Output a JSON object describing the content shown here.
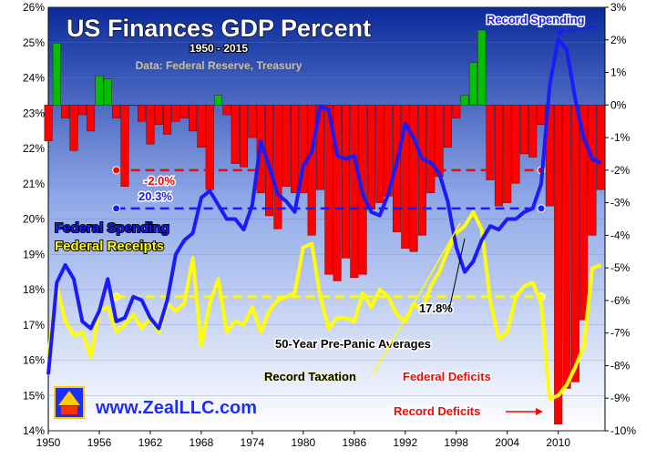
{
  "chart_data": {
    "type": "bar+line",
    "title": "US Finances GDP Percent",
    "subtitle": "1950 - 2015",
    "source": "Data: Federal Reserve, Treasury",
    "left_axis": {
      "min": 14,
      "max": 26,
      "ticks": [
        "14%",
        "15%",
        "16%",
        "17%",
        "18%",
        "19%",
        "20%",
        "21%",
        "22%",
        "23%",
        "24%",
        "25%",
        "26%"
      ]
    },
    "right_axis": {
      "min": -10,
      "max": 3,
      "ticks": [
        "-10%",
        "-9%",
        "-8%",
        "-7%",
        "-6%",
        "-5%",
        "-4%",
        "-3%",
        "-2%",
        "-1%",
        "0%",
        "1%",
        "2%",
        "3%"
      ]
    },
    "x_ticks": [
      "1950",
      "1956",
      "1962",
      "1968",
      "1974",
      "1980",
      "1986",
      "1992",
      "1998",
      "2004",
      "2010"
    ],
    "years": [
      1950,
      1951,
      1952,
      1953,
      1954,
      1955,
      1956,
      1957,
      1958,
      1959,
      1960,
      1961,
      1962,
      1963,
      1964,
      1965,
      1966,
      1967,
      1968,
      1969,
      1970,
      1971,
      1972,
      1973,
      1974,
      1975,
      1976,
      1977,
      1978,
      1979,
      1980,
      1981,
      1982,
      1983,
      1984,
      1985,
      1986,
      1987,
      1988,
      1989,
      1990,
      1991,
      1992,
      1993,
      1994,
      1995,
      1996,
      1997,
      1998,
      1999,
      2000,
      2001,
      2002,
      2003,
      2004,
      2005,
      2006,
      2007,
      2008,
      2009,
      2010,
      2011,
      2012,
      2013,
      2014,
      2015
    ],
    "series": [
      {
        "name": "Federal Spending",
        "axis": "left",
        "color": "#1a1aff",
        "values": [
          15.6,
          18.2,
          18.7,
          18.3,
          17.1,
          16.9,
          17.4,
          18.3,
          17.1,
          17.2,
          17.8,
          17.7,
          17.2,
          16.9,
          17.7,
          19.0,
          19.4,
          19.6,
          20.6,
          20.8,
          20.4,
          20.0,
          20.0,
          19.7,
          20.4,
          22.2,
          21.5,
          20.7,
          20.5,
          20.2,
          21.5,
          21.9,
          23.2,
          23.1,
          21.8,
          21.7,
          21.8,
          20.7,
          20.2,
          20.1,
          20.7,
          21.6,
          22.7,
          22.3,
          21.7,
          21.6,
          21.3,
          20.5,
          19.2,
          18.5,
          18.8,
          19.4,
          19.8,
          19.7,
          20.0,
          20.0,
          20.2,
          20.3,
          21.0,
          23.8,
          25.1,
          24.8,
          23.4,
          22.3,
          21.7,
          21.6
        ]
      },
      {
        "name": "Federal Receipts",
        "axis": "left",
        "color": "#ffff00",
        "values": [
          16.1,
          18.1,
          17.1,
          16.7,
          16.8,
          16.1,
          17.4,
          17.5,
          16.8,
          17.0,
          17.3,
          16.9,
          17.2,
          16.8,
          17.6,
          17.4,
          17.6,
          18.9,
          16.4,
          17.6,
          18.3,
          16.8,
          17.1,
          17.0,
          17.5,
          16.8,
          17.4,
          17.7,
          17.8,
          17.9,
          19.2,
          19.3,
          17.8,
          16.9,
          17.2,
          17.2,
          17.1,
          17.9,
          17.5,
          18.0,
          17.8,
          17.3,
          17.1,
          17.6,
          17.4,
          18.1,
          18.5,
          19.1,
          19.6,
          19.8,
          20.2,
          19.7,
          17.7,
          16.6,
          16.8,
          17.8,
          18.1,
          18.2,
          17.6,
          14.9,
          15.0,
          15.3,
          15.8,
          16.4,
          18.6,
          18.7
        ]
      },
      {
        "name": "Federal Deficits",
        "axis": "right",
        "positive_color": "#00c000",
        "negative_color": "#ff0000",
        "values": [
          -1.1,
          1.9,
          -0.4,
          -1.4,
          -0.3,
          -0.8,
          0.9,
          0.8,
          -0.4,
          -2.5,
          0.0,
          -0.5,
          -1.2,
          -0.6,
          -0.9,
          -0.5,
          -0.4,
          -0.8,
          -1.3,
          -2.6,
          0.3,
          -0.3,
          -1.8,
          -1.9,
          -1.0,
          -2.7,
          -3.4,
          -3.8,
          -2.5,
          -2.7,
          -2.7,
          -4.0,
          -2.6,
          -5.2,
          -5.4,
          -4.7,
          -5.3,
          -5.2,
          -3.2,
          -3.0,
          -2.8,
          -3.9,
          -4.4,
          -4.5,
          -4.0,
          -2.7,
          -2.2,
          -1.3,
          -0.4,
          0.3,
          1.3,
          2.3,
          -2.3,
          -3.1,
          -3.0,
          -2.4,
          -1.5,
          -1.6,
          -0.6,
          -3.1,
          -9.8,
          -8.7,
          -8.5,
          -6.6,
          -4.0,
          -2.6
        ]
      }
    ],
    "averages": [
      {
        "name": "Federal Spending 50-Year Average",
        "axis": "left",
        "value": 20.3,
        "label": "20.3%",
        "color": "#1a1aff",
        "from_year": 1958,
        "to_year": 2008
      },
      {
        "name": "Federal Receipts 50-Year Average",
        "axis": "left",
        "value": 17.8,
        "label": "17.8%",
        "color": "#ffff00",
        "from_year": 1958,
        "to_year": 2008
      },
      {
        "name": "Federal Deficits 50-Year Average",
        "axis": "right",
        "value": -2.0,
        "label": "-2.0%",
        "color": "#ff0000",
        "from_year": 1958,
        "to_year": 2008
      }
    ],
    "annotations": {
      "record_spending": "Record Spending",
      "averages_label": "50-Year Pre-Panic Averages",
      "record_taxation": "Record Taxation",
      "federal_deficits": "Federal Deficits",
      "record_deficits": "Record Deficits",
      "spending_label": "Federal Spending",
      "receipts_label": "Federal Receipts",
      "website": "www.ZealLLC.com"
    },
    "colors": {
      "background_top": "#0a2a9a",
      "background_bottom": "#ffffff",
      "spending": "#1a1aff",
      "receipts": "#ffff00",
      "deficit": "#ff0000",
      "surplus": "#00c000"
    },
    "grid": true,
    "legend_placement": "left"
  }
}
